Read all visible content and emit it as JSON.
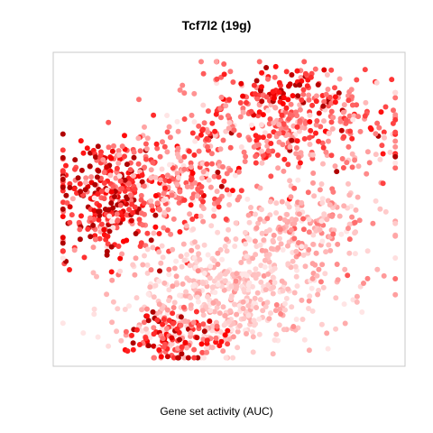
{
  "chart_data": {
    "type": "scatter",
    "title": "Tcf7l2 (19g)",
    "xlabel": "Gene set activity (AUC)",
    "ylabel": "",
    "axes": "hidden",
    "grid": false,
    "legend": "none",
    "color_scale": {
      "low": "#ffe5e5",
      "high": "#ff0000",
      "max_dark": "#b00000"
    },
    "xlim": [
      0,
      100
    ],
    "ylim": [
      0,
      100
    ],
    "clusters": [
      {
        "name": "upper-right",
        "x": 67,
        "y": 78,
        "sx": 17,
        "sy": 9,
        "n": 430,
        "activity": 0.45,
        "spread": 0.25
      },
      {
        "name": "upper-right-hotspot",
        "x": 63,
        "y": 89,
        "sx": 7,
        "sy": 4,
        "n": 60,
        "activity": 0.85,
        "spread": 0.15
      },
      {
        "name": "left-dense",
        "x": 15,
        "y": 54,
        "sx": 8,
        "sy": 10,
        "n": 330,
        "activity": 0.75,
        "spread": 0.3
      },
      {
        "name": "left-mid",
        "x": 34,
        "y": 60,
        "sx": 9,
        "sy": 8,
        "n": 200,
        "activity": 0.4,
        "spread": 0.25
      },
      {
        "name": "center-bottom",
        "x": 48,
        "y": 22,
        "sx": 16,
        "sy": 10,
        "n": 520,
        "activity": 0.12,
        "spread": 0.1
      },
      {
        "name": "right-arm",
        "x": 72,
        "y": 43,
        "sx": 12,
        "sy": 7,
        "n": 200,
        "activity": 0.22,
        "spread": 0.15
      },
      {
        "name": "bottom-left-hot",
        "x": 34,
        "y": 8,
        "sx": 7,
        "sy": 4,
        "n": 130,
        "activity": 0.7,
        "spread": 0.25
      }
    ]
  }
}
